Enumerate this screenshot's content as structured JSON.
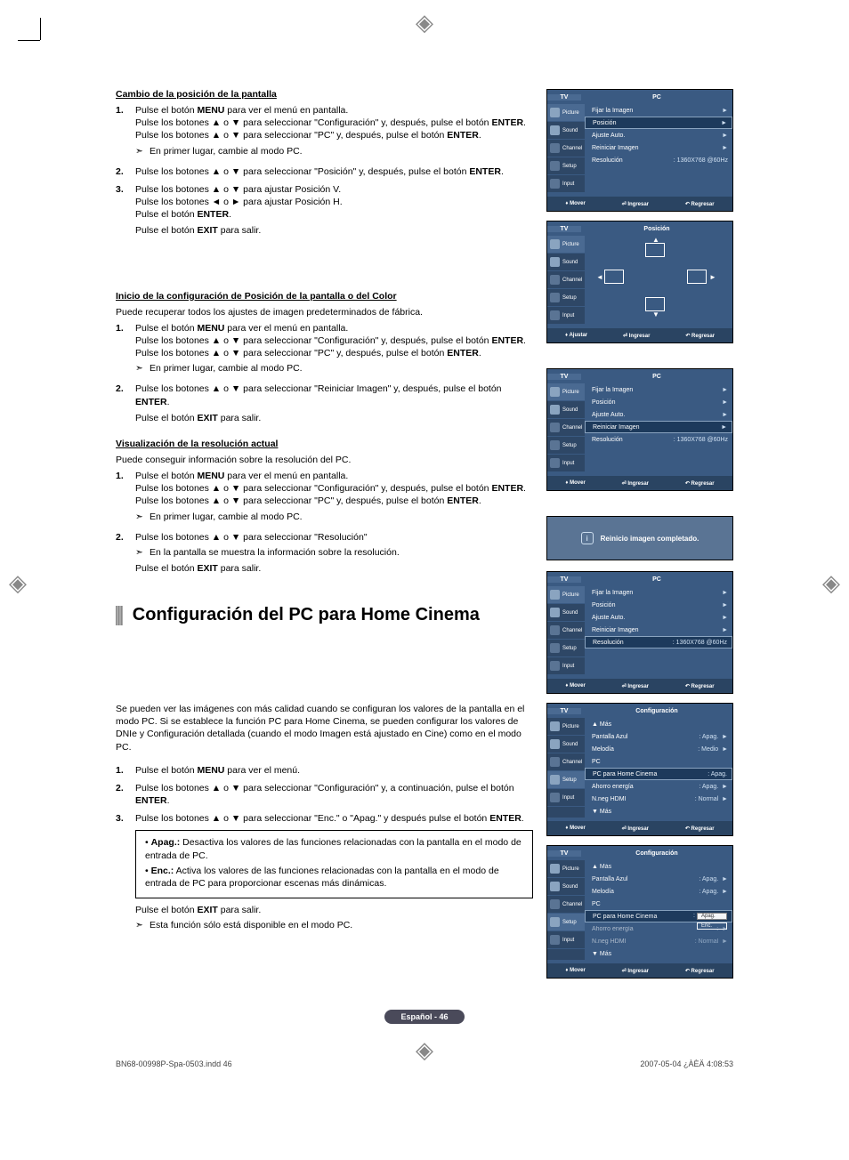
{
  "reg_glyph": "◈",
  "section1": {
    "title": "Cambio de la posición de la pantalla",
    "steps": [
      {
        "n": "1.",
        "body": "Pulse el botón <b>MENU</b> para ver el menú en pantalla.<br>Pulse los botones ▲ o ▼ para seleccionar \"Configuración\" y, después, pulse el botón <b>ENTER</b>.<br>Pulse los botones ▲ o ▼ para seleccionar \"PC\" y, después, pulse el botón <b>ENTER</b>.",
        "note": "En primer lugar, cambie al modo PC."
      },
      {
        "n": "2.",
        "body": "Pulse los botones ▲ o ▼ para seleccionar \"Posición\" y, después, pulse el botón <b>ENTER</b>."
      },
      {
        "n": "3.",
        "body": "Pulse los botones ▲ o ▼ para ajustar Posición V.<br>Pulse los botones ◄ o ► para ajustar Posición H.<br>Pulse el botón <b>ENTER</b>.",
        "after": "Pulse el botón <b>EXIT</b> para salir."
      }
    ]
  },
  "section2": {
    "title": "Inicio de la configuración de Posición de la pantalla o del Color",
    "intro": "Puede recuperar todos los ajustes de imagen predeterminados de fábrica.",
    "steps": [
      {
        "n": "1.",
        "body": "Pulse el botón <b>MENU</b> para ver el menú en pantalla.<br>Pulse los botones ▲ o ▼ para seleccionar \"Configuración\" y, después, pulse el botón <b>ENTER</b>.<br>Pulse los botones ▲ o ▼ para seleccionar \"PC\" y, después, pulse el botón <b>ENTER</b>.",
        "note": "En primer lugar, cambie al modo PC."
      },
      {
        "n": "2.",
        "body": "Pulse los botones ▲ o ▼ para seleccionar \"Reiniciar Imagen\" y, después, pulse el botón <b>ENTER</b>.",
        "after": "Pulse el botón <b>EXIT</b> para salir."
      }
    ]
  },
  "section3": {
    "title": "Visualización de la resolución actual",
    "intro": "Puede conseguir información sobre la resolución del PC.",
    "steps": [
      {
        "n": "1.",
        "body": "Pulse el botón <b>MENU</b> para ver el menú en pantalla.<br>Pulse los botones ▲ o ▼ para seleccionar \"Configuración\" y, después, pulse el botón <b>ENTER</b>.<br>Pulse los botones ▲ o ▼ para seleccionar \"PC\" y, después, pulse el botón <b>ENTER</b>.",
        "note": "En primer lugar, cambie al modo PC."
      },
      {
        "n": "2.",
        "body": "Pulse los botones ▲ o ▼ para seleccionar \"Resolución\"",
        "note2": "En la pantalla se muestra la información sobre la resolución.",
        "after": "Pulse el botón <b>EXIT</b> para salir."
      }
    ]
  },
  "h2": "Configuración del PC para Home Cinema",
  "section4": {
    "intro": "Se pueden ver las imágenes con más calidad cuando se configuran los valores de la pantalla en el modo PC. Si se establece la función PC para Home Cinema, se pueden configurar los valores de DNIe y Configuración detallada (cuando el modo Imagen está ajustado en Cine) como en el modo PC.",
    "steps": [
      {
        "n": "1.",
        "body": "Pulse el botón <b>MENU</b> para ver el menú."
      },
      {
        "n": "2.",
        "body": "Pulse los botones ▲ o ▼ para seleccionar \"Configuración\" y, a continuación, pulse el botón <b>ENTER</b>."
      },
      {
        "n": "3.",
        "body": "Pulse los botones ▲ o ▼ para seleccionar \"Enc.\" o \"Apag.\" y después pulse el botón <b>ENTER</b>."
      }
    ],
    "bullets": [
      "<b>Apag.:</b> Desactiva los valores de las funciones relacionadas con la pantalla en el modo de entrada de PC.",
      "<b>Enc.:</b> Activa los valores de las funciones relacionadas con la pantalla en el modo de entrada de PC para proporcionar escenas más dinámicas."
    ],
    "after": "Pulse el botón <b>EXIT</b> para salir.",
    "final_note": "Esta función sólo está disponible en el modo PC."
  },
  "osd": {
    "tabs": [
      "Picture",
      "Sound",
      "Channel",
      "Setup",
      "Input"
    ],
    "tv": "TV",
    "titles": {
      "pc": "PC",
      "posicion": "Posición",
      "config": "Configuración"
    },
    "pc_rows": [
      {
        "k": "Fijar la Imagen",
        "v": "►"
      },
      {
        "k": "Posición",
        "v": "►"
      },
      {
        "k": "Ajuste Auto.",
        "v": "►"
      },
      {
        "k": "Reiniciar Imagen",
        "v": "►"
      },
      {
        "k": "Resolución",
        "v": ": 1360X768 @60Hz"
      }
    ],
    "footer": {
      "mover": "♦ Mover",
      "ajustar": "♦ Ajustar",
      "ingresar": "⏎ Ingresar",
      "regresar": "↶ Regresar"
    },
    "info": "Reinicio imagen completado.",
    "config_rows": [
      {
        "k": "▲ Más",
        "v": ""
      },
      {
        "k": "Pantalla Azul",
        "v": ": Apag."
      },
      {
        "k": "Melodía",
        "v": ": Medio"
      },
      {
        "k": "PC",
        "v": ""
      },
      {
        "k": "PC para Home Cinema",
        "v": ": Apag."
      },
      {
        "k": "Ahorro energía",
        "v": ": Apag."
      },
      {
        "k": "N.neg HDMI",
        "v": ": Normal"
      },
      {
        "k": "▼ Más",
        "v": ""
      }
    ],
    "config_rows2": [
      {
        "k": "▲ Más",
        "v": ""
      },
      {
        "k": "Pantalla Azul",
        "v": ": Apag."
      },
      {
        "k": "Melodía",
        "v": ": Apag."
      },
      {
        "k": "PC",
        "v": ""
      },
      {
        "k": "PC para Home Cinema",
        "v": ":",
        "dd_cur": "Apag.",
        "dd_alt": "Enc."
      },
      {
        "k": "Ahorro energía",
        "v": ":"
      },
      {
        "k": "N.neg HDMI",
        "v": ": Normal"
      },
      {
        "k": "▼ Más",
        "v": ""
      }
    ]
  },
  "badge": "Español - 46",
  "footer": {
    "left": "BN68-00998P-Spa-0503.indd   46",
    "right": "2007-05-04   ¿ÀÈÄ 4:08:53"
  }
}
